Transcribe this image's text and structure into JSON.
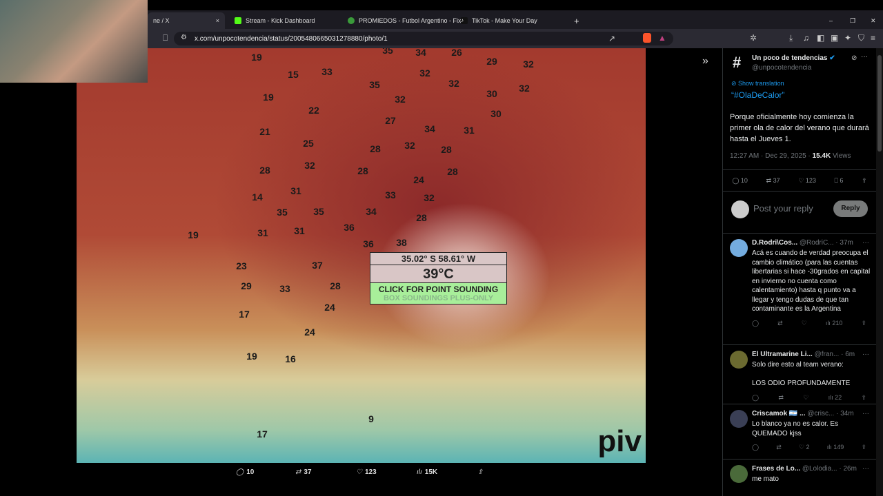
{
  "browser": {
    "tabs": [
      {
        "label": "ne / X",
        "close": "×"
      },
      {
        "label": "Stream - Kick Dashboard"
      },
      {
        "label": "PROMIEDOS - Futbol Argentino - Fix"
      },
      {
        "label": "TikTok - Make Your Day"
      }
    ],
    "new_tab": "+",
    "url": "x.com/unpocotendencia/status/2005480665031278880/photo/1",
    "window": {
      "minimize": "–",
      "restore": "❐",
      "close": "✕"
    }
  },
  "map": {
    "labels": [
      "19",
      "15",
      "33",
      "35",
      "34",
      "26",
      "29",
      "32",
      "35",
      "32",
      "32",
      "32",
      "30",
      "19",
      "22",
      "32",
      "27",
      "34",
      "31",
      "30",
      "21",
      "25",
      "28",
      "32",
      "28",
      "32",
      "28",
      "28",
      "28",
      "24",
      "31",
      "33",
      "32",
      "14",
      "35",
      "35",
      "34",
      "28",
      "36",
      "31",
      "31",
      "36",
      "38",
      "19",
      "37",
      "23",
      "29",
      "33",
      "28",
      "24",
      "17",
      "24",
      "19",
      "16",
      "9",
      "17"
    ],
    "tooltip": {
      "coords": "35.02° S 58.61° W",
      "temp": "39°C",
      "cta": "CLICK FOR POINT SOUNDING",
      "sub": "BOX SOUNDINGS PLUS-ONLY"
    },
    "watermark": "piv",
    "colors": {
      "hot": "#8c2a2a",
      "white": "#f1dcd4",
      "cool": "#5cb4b4",
      "tooltip_green": "#a8ee9a"
    }
  },
  "photo_actions": {
    "replies": "10",
    "reposts": "37",
    "likes": "123",
    "views": "15K"
  },
  "post": {
    "author": "Un poco de tendencias",
    "handle": "@unpocotendencia",
    "avatar": "#",
    "show_translation": "Show translation",
    "hashtag": "“#OlaDeCalor”",
    "body": "Porque oficialmente hoy comienza la primer ola de calor del verano que durará hasta el Jueves 1.",
    "time": "12:27 AM · Dec 29, 2025 · ",
    "views_count": "15.4K",
    "views_label": " Views",
    "replies": "10",
    "reposts": "37",
    "likes": "123",
    "bookmarks": "6",
    "reply_placeholder": "Post your reply",
    "reply_button": "Reply"
  },
  "replies": [
    {
      "name": "D.Rodri\\Cos...",
      "handle": "@RodriC...",
      "time": "· 37m",
      "text": "Acá es cuando de verdad preocupa el cambio climático (para las cuentas libertarias si hace -30grados en capital en invierno no cuenta como calentamiento) hasta q punto va a llegar y tengo dudas de que tan contaminante es la Argentina",
      "likes": "",
      "views": "210",
      "color": "#74acdf"
    },
    {
      "name": "El Ultramarine Li...",
      "handle": "@fran...",
      "time": "· 6m",
      "text": "Solo dire esto al team verano:\n\nLOS ODIO PROFUNDAMENTE",
      "likes": "",
      "views": "22",
      "color": "#6b6a30"
    },
    {
      "name": "Criscamok 🇦🇷 ...",
      "handle": "@crisc...",
      "time": "· 34m",
      "text": "Lo blanco ya no es calor. Es QUEMADO kjss",
      "likes": "2",
      "views": "149",
      "color": "#3a3f55"
    },
    {
      "name": "Frases de Lo...",
      "handle": "@Lolodia...",
      "time": "· 26m",
      "text": "me mato",
      "likes": "",
      "views": "",
      "color": "#4a6a3a"
    }
  ]
}
